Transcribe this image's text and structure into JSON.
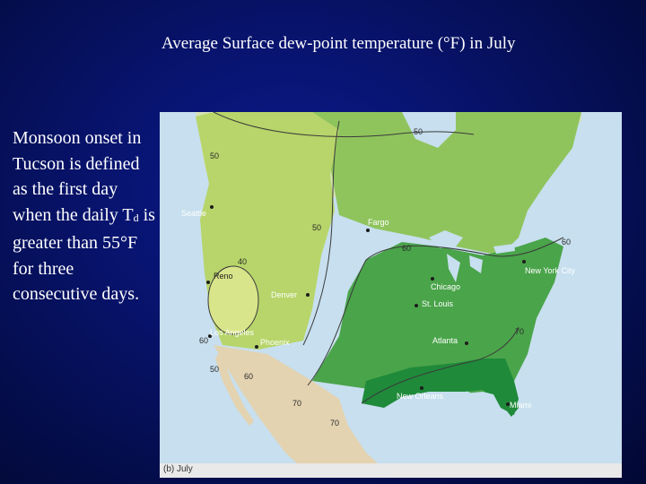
{
  "slide": {
    "title": "Average Surface dew-point temperature (°F) in July",
    "body_prefix": "Monsoon onset in Tucson is defined as the first day when the daily T",
    "body_subscript": "d",
    "body_suffix": " is greater than 55°F for three consecutive days."
  },
  "map": {
    "caption": "(b) July",
    "isoline_labels": [
      "50",
      "50",
      "50",
      "40",
      "50",
      "60",
      "60",
      "60",
      "70",
      "60",
      "70",
      "70"
    ],
    "cities": [
      {
        "name": "Seattle"
      },
      {
        "name": "Fargo"
      },
      {
        "name": "Reno"
      },
      {
        "name": "Denver"
      },
      {
        "name": "Chicago"
      },
      {
        "name": "St. Louis"
      },
      {
        "name": "New York City"
      },
      {
        "name": "Los Angeles"
      },
      {
        "name": "Phoenix"
      },
      {
        "name": "Atlanta"
      },
      {
        "name": "New Orleans"
      },
      {
        "name": "Miami"
      }
    ],
    "colors": {
      "ocean": "#c7dfee",
      "mexico_land": "#e3d3b1",
      "canada_land": "#d6e3b6",
      "zone_lt40": "#d9e58a",
      "zone_40_50": "#b7d56a",
      "zone_50_60": "#7fbd58",
      "zone_60_70": "#4aa44a",
      "zone_gt70": "#1f8a3a",
      "isoline": "#3a3a3a"
    }
  }
}
